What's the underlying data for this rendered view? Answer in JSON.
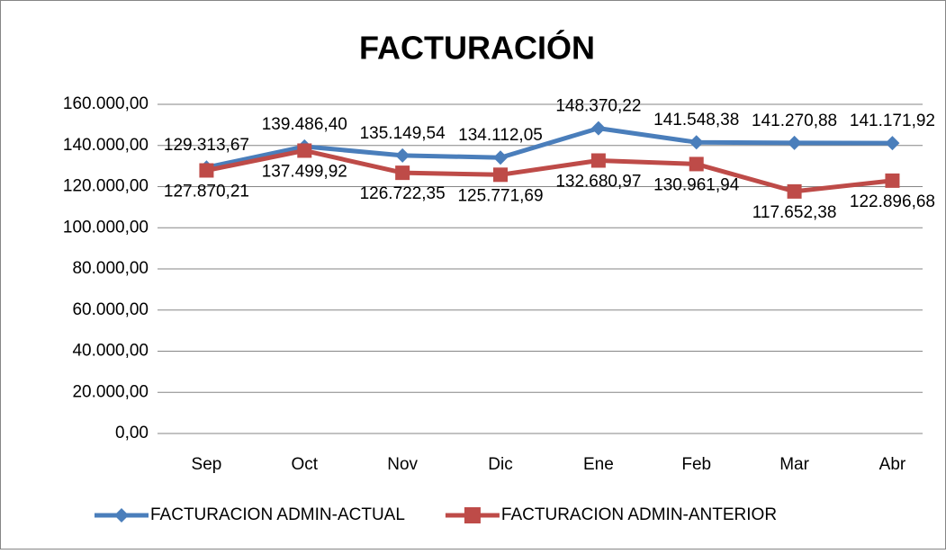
{
  "chart_data": {
    "type": "line",
    "title": "FACTURACIÓN",
    "categories": [
      "Sep",
      "Oct",
      "Nov",
      "Dic",
      "Ene",
      "Feb",
      "Mar",
      "Abr"
    ],
    "series": [
      {
        "name": "FACTURACION ADMIN-ACTUAL",
        "color": "#4a7ebb",
        "marker": "diamond",
        "values": [
          129313.67,
          139486.4,
          135149.54,
          134112.05,
          148370.22,
          141548.38,
          141270.88,
          141171.92
        ],
        "value_labels": [
          "129.313,67",
          "139.486,40",
          "135.149,54",
          "134.112,05",
          "148.370,22",
          "141.548,38",
          "141.270,88",
          "141.171,92"
        ]
      },
      {
        "name": "FACTURACION ADMIN-ANTERIOR",
        "color": "#be4b48",
        "marker": "square",
        "values": [
          127870.21,
          137499.92,
          126722.35,
          125771.69,
          132680.97,
          130961.94,
          117652.38,
          122896.68
        ],
        "value_labels": [
          "127.870,21",
          "137.499,92",
          "126.722,35",
          "125.771,69",
          "132.680,97",
          "130.961,94",
          "117.652,38",
          "122.896,68"
        ]
      }
    ],
    "ylim": [
      0,
      160000
    ],
    "yticks": [
      {
        "value": 0,
        "label": "0,00"
      },
      {
        "value": 20000,
        "label": "20.000,00"
      },
      {
        "value": 40000,
        "label": "40.000,00"
      },
      {
        "value": 60000,
        "label": "60.000,00"
      },
      {
        "value": 80000,
        "label": "80.000,00"
      },
      {
        "value": 100000,
        "label": "100.000,00"
      },
      {
        "value": 120000,
        "label": "120.000,00"
      },
      {
        "value": 140000,
        "label": "140.000,00"
      },
      {
        "value": 160000,
        "label": "160.000,00"
      }
    ],
    "grid": true,
    "legend": "bottom"
  }
}
